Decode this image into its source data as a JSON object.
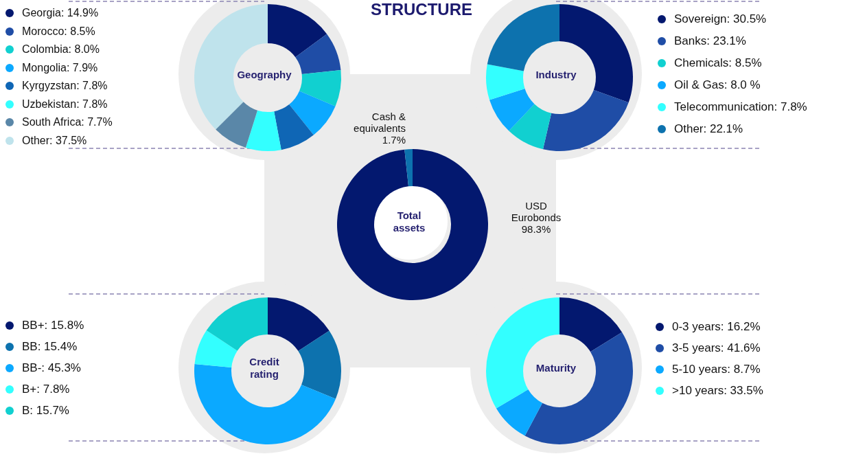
{
  "chart_data": [
    {
      "type": "other",
      "title": "STRUCTURE"
    },
    {
      "type": "donut",
      "title": "Geography",
      "legend": "left",
      "categories": [
        "Georgia",
        "Morocco",
        "Colombia",
        "Mongolia",
        "Kyrgyzstan",
        "Uzbekistan",
        "South Africa",
        "Other"
      ],
      "values": [
        14.9,
        8.5,
        8.0,
        7.9,
        7.8,
        7.8,
        7.7,
        37.5
      ],
      "value_labels": [
        "14.9%",
        "8.5%",
        "8.0%",
        "7.9%",
        "7.8%",
        "7.8%",
        "7.7%",
        "37.5%"
      ],
      "colors": [
        "#03186f",
        "#1f4da6",
        "#11d0d0",
        "#0ba9ff",
        "#0f66b5",
        "#33ffff",
        "#5a87a8",
        "#bfe3ec"
      ]
    },
    {
      "type": "donut",
      "title": "Industry",
      "legend": "right",
      "categories": [
        "Sovereign",
        "Banks",
        "Chemicals",
        "Oil & Gas",
        "Telecommunication",
        "Other"
      ],
      "values": [
        30.5,
        23.1,
        8.5,
        8.0,
        7.8,
        22.1
      ],
      "value_labels": [
        "30.5%",
        "23.1%",
        "8.5%",
        "8.0 %",
        "7.8%",
        "22.1%"
      ],
      "colors": [
        "#03186f",
        "#1f4da6",
        "#11d0d0",
        "#0ba9ff",
        "#33ffff",
        "#0d72ae"
      ]
    },
    {
      "type": "donut",
      "title": "Total assets",
      "legend": false,
      "categories": [
        "USD Eurobonds",
        "Cash & equivalents"
      ],
      "values": [
        98.3,
        1.7
      ],
      "value_labels": [
        "98.3%",
        "1.7%"
      ],
      "colors": [
        "#03186f",
        "#0d72ae"
      ]
    },
    {
      "type": "donut",
      "title": "Credit rating",
      "legend": "left",
      "categories": [
        "BB+",
        "BB",
        "BB-",
        "B+",
        "B"
      ],
      "values": [
        15.8,
        15.4,
        45.3,
        7.8,
        15.7
      ],
      "value_labels": [
        "15.8%",
        "15.4%",
        "45.3%",
        "7.8%",
        "15.7%"
      ],
      "colors": [
        "#03186f",
        "#0d72ae",
        "#0ba9ff",
        "#33ffff",
        "#11d0d0"
      ]
    },
    {
      "type": "donut",
      "title": "Maturity",
      "legend": "right",
      "categories": [
        "0-3 years",
        "3-5 years",
        "5-10 years",
        ">10 years"
      ],
      "values": [
        16.2,
        41.6,
        8.7,
        33.5
      ],
      "value_labels": [
        "16.2%",
        "41.6%",
        "8.7%",
        "33.5%"
      ],
      "colors": [
        "#03186f",
        "#1f4da6",
        "#0ba9ff",
        "#33ffff"
      ]
    }
  ]
}
